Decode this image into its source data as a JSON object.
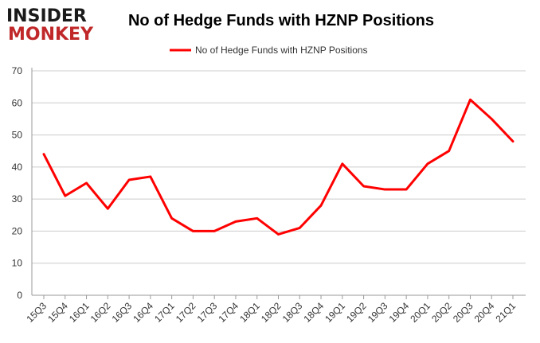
{
  "logo": {
    "line1": "INSIDER",
    "line2": "MONKEY",
    "color_dark": "#1a1a1a",
    "color_accent": "#c0282a"
  },
  "colors": {
    "series": "#ff0000",
    "grid": "#cccccc",
    "axis": "#999999"
  },
  "chart_data": {
    "type": "line",
    "title": "No of Hedge Funds with HZNP Positions",
    "xlabel": "",
    "ylabel": "",
    "ylim": [
      0,
      70
    ],
    "yticks": [
      0,
      10,
      20,
      30,
      40,
      50,
      60,
      70
    ],
    "grid": true,
    "legend_position": "top-center",
    "categories": [
      "15Q3",
      "15Q4",
      "16Q1",
      "16Q2",
      "16Q3",
      "16Q4",
      "17Q1",
      "17Q2",
      "17Q3",
      "17Q4",
      "18Q1",
      "18Q2",
      "18Q3",
      "18Q4",
      "19Q1",
      "19Q2",
      "19Q3",
      "19Q4",
      "20Q1",
      "20Q2",
      "20Q3",
      "20Q4",
      "21Q1"
    ],
    "series": [
      {
        "name": "No of Hedge Funds with HZNP Positions",
        "values": [
          44,
          31,
          35,
          27,
          36,
          37,
          24,
          20,
          20,
          23,
          24,
          19,
          21,
          28,
          41,
          34,
          33,
          33,
          41,
          45,
          61,
          55,
          48
        ]
      }
    ]
  }
}
